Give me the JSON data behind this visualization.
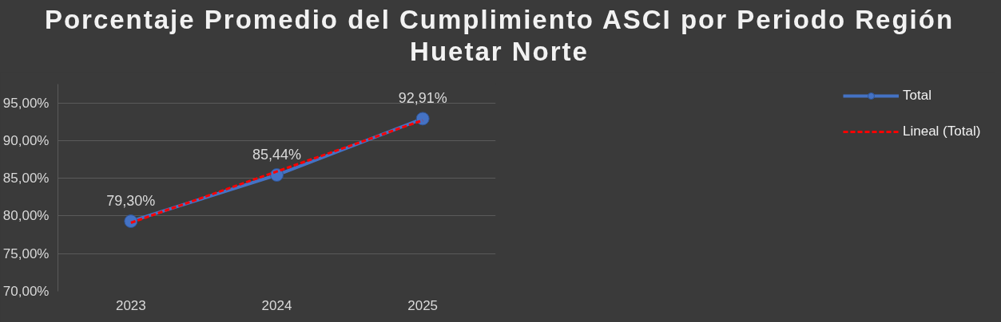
{
  "chart_data": {
    "type": "line",
    "title": "Porcentaje Promedio del Cumplimiento ASCI por Periodo Región Huetar Norte",
    "categories": [
      "2023",
      "2024",
      "2025"
    ],
    "series": [
      {
        "name": "Total",
        "color": "#4472c4",
        "values": [
          79.3,
          85.44,
          92.91
        ],
        "value_labels": [
          "79,30%",
          "85,44%",
          "92,91%"
        ],
        "marker": "circle"
      },
      {
        "name": "Lineal (Total)",
        "color": "#ff0000",
        "values": [
          79.1,
          85.9,
          92.7
        ],
        "line_style": "dashed",
        "marker": "none"
      }
    ],
    "ylim": [
      70,
      97.5
    ],
    "yticks": [
      {
        "value": 70,
        "label": "70,00%"
      },
      {
        "value": 75,
        "label": "75,00%"
      },
      {
        "value": 80,
        "label": "80,00%"
      },
      {
        "value": 85,
        "label": "85,00%"
      },
      {
        "value": 90,
        "label": "90,00%"
      },
      {
        "value": 95,
        "label": "95,00%"
      }
    ],
    "grid": "y",
    "legend": "right"
  }
}
